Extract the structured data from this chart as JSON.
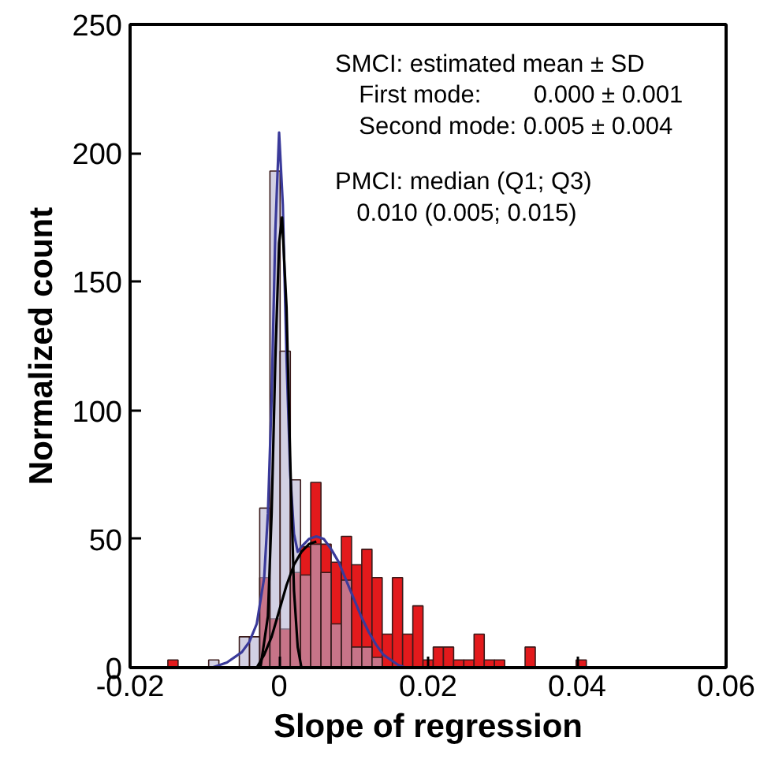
{
  "chart_data": {
    "type": "histogram",
    "xlabel": "Slope of regression",
    "ylabel": "Normalized count",
    "bins": [
      -0.01493,
      -0.01356,
      -0.01219,
      -0.01082,
      -0.00945,
      -0.00808,
      -0.00671,
      -0.00534,
      -0.00397,
      -0.0026,
      -0.00123,
      0.00014,
      0.00151,
      0.00288,
      0.00425,
      0.00562,
      0.00699,
      0.00836,
      0.00973,
      0.0111,
      0.01247,
      0.01384,
      0.01521,
      0.01658,
      0.01795,
      0.01932,
      0.02069,
      0.02206,
      0.02343,
      0.0248,
      0.02617,
      0.02754,
      0.02891,
      0.03028,
      0.03165,
      0.03302,
      0.03439,
      0.03576,
      0.03713,
      0.0385,
      0.03987,
      0.04124
    ],
    "series": [
      {
        "color": "#e31a1c",
        "values": [
          3,
          0,
          0,
          0,
          0,
          0,
          0,
          0,
          0,
          35,
          19,
          15,
          37,
          47,
          72,
          48,
          41,
          51,
          40,
          46,
          35,
          13,
          35,
          13,
          24,
          3,
          8,
          8,
          3,
          3,
          13,
          3,
          3,
          0,
          0,
          8,
          0,
          0,
          0,
          0,
          3
        ]
      },
      {
        "color": "#b4b0d0",
        "values": [
          0,
          0,
          0,
          0,
          3,
          0,
          0,
          12,
          12,
          62,
          193,
          123,
          73,
          36,
          48,
          37,
          17,
          34,
          8,
          8,
          4,
          0,
          0,
          0,
          0,
          0,
          0,
          0,
          0,
          0,
          0,
          0,
          0,
          0,
          0,
          0,
          0,
          0,
          0,
          0,
          0
        ]
      },
      {
        "type": "line",
        "color": "#3a3a9a",
        "x": [
          -0.009,
          -0.007,
          -0.005,
          -0.004,
          -0.003,
          -0.002,
          -0.0015,
          -0.001,
          -0.0005,
          0,
          0.0005,
          0.001,
          0.0015,
          0.002,
          0.0025,
          0.003,
          0.004,
          0.005,
          0.006,
          0.007,
          0.008,
          0.009,
          0.01,
          0.011,
          0.012,
          0.013,
          0.014,
          0.015,
          0.016,
          0.017
        ],
        "values": [
          0,
          2,
          6,
          10,
          17,
          35,
          60,
          105,
          170,
          208,
          180,
          120,
          75,
          52,
          45,
          47,
          50,
          51,
          50,
          46,
          41,
          34,
          27,
          20,
          14,
          9,
          5,
          3,
          1,
          0
        ]
      },
      {
        "type": "line",
        "color": "#000000",
        "x": [
          -0.0025,
          -0.0015,
          -0.001,
          -0.0005,
          0,
          0.0004,
          0.001,
          0.0015,
          0.002,
          0.0025,
          0.003
        ],
        "values": [
          0,
          20,
          60,
          120,
          165,
          175,
          140,
          80,
          30,
          8,
          0
        ]
      },
      {
        "type": "line",
        "color": "#000000",
        "x": [
          -0.003,
          -0.002,
          -0.001,
          0,
          0.001,
          0.002,
          0.003,
          0.004,
          0.005
        ],
        "values": [
          0,
          5,
          12,
          22,
          32,
          40,
          45,
          48,
          49
        ]
      }
    ],
    "xlim": [
      -0.02,
      0.06
    ],
    "ylim": [
      0,
      250
    ],
    "xticks": [
      -0.02,
      0,
      0.02,
      0.04,
      0.06
    ],
    "yticks": [
      0,
      50,
      100,
      150,
      200,
      250
    ],
    "grid": false,
    "annotations": [
      "SMCI: estimated mean ± SD",
      "First mode:",
      "0.000 ± 0.001",
      "Second mode: 0.005 ± 0.004",
      "PMCI: median (Q1; Q3)",
      "0.010 (0.005; 0.015)"
    ]
  }
}
